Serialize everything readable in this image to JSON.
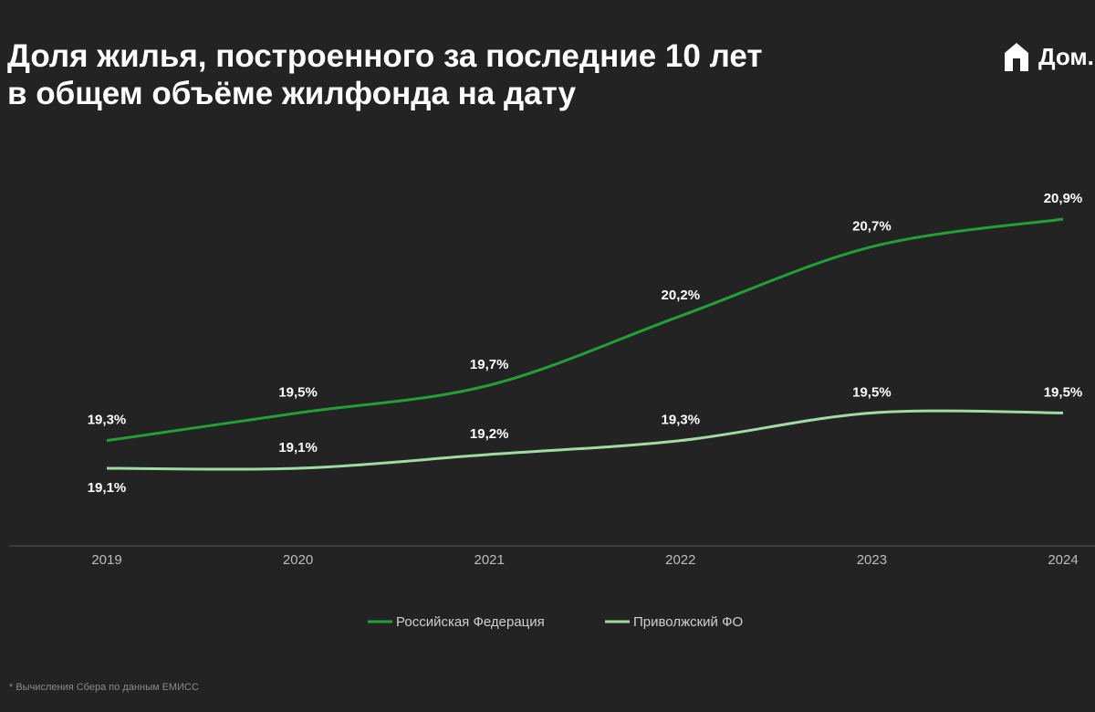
{
  "logo_text": "Дом.РФ",
  "footnote": "* Вычисления Сбера по данным ЕМИСС",
  "chart_data": {
    "type": "line",
    "title_lines": [
      "Доля жилья, построенного за последние 10 лет",
      "в общем объёме жилфонда на дату"
    ],
    "x": [
      "2019",
      "2020",
      "2021",
      "2022",
      "2023",
      "2024"
    ],
    "series": [
      {
        "name": "Российская Федерация",
        "color": "#21a038",
        "values": [
          19.3,
          19.5,
          19.7,
          20.2,
          20.7,
          20.9
        ],
        "value_labels": [
          "19,3%",
          "19,5%",
          "19,7%",
          "20,2%",
          "20,7%",
          "20,9%"
        ]
      },
      {
        "name": "Приволжский ФО",
        "color": "#9fdca4",
        "values": [
          19.1,
          19.1,
          19.2,
          19.3,
          19.5,
          19.5
        ],
        "value_labels": [
          "19,1%",
          "19,1%",
          "19,2%",
          "19,3%",
          "19,5%",
          "19,5%"
        ]
      }
    ]
  }
}
